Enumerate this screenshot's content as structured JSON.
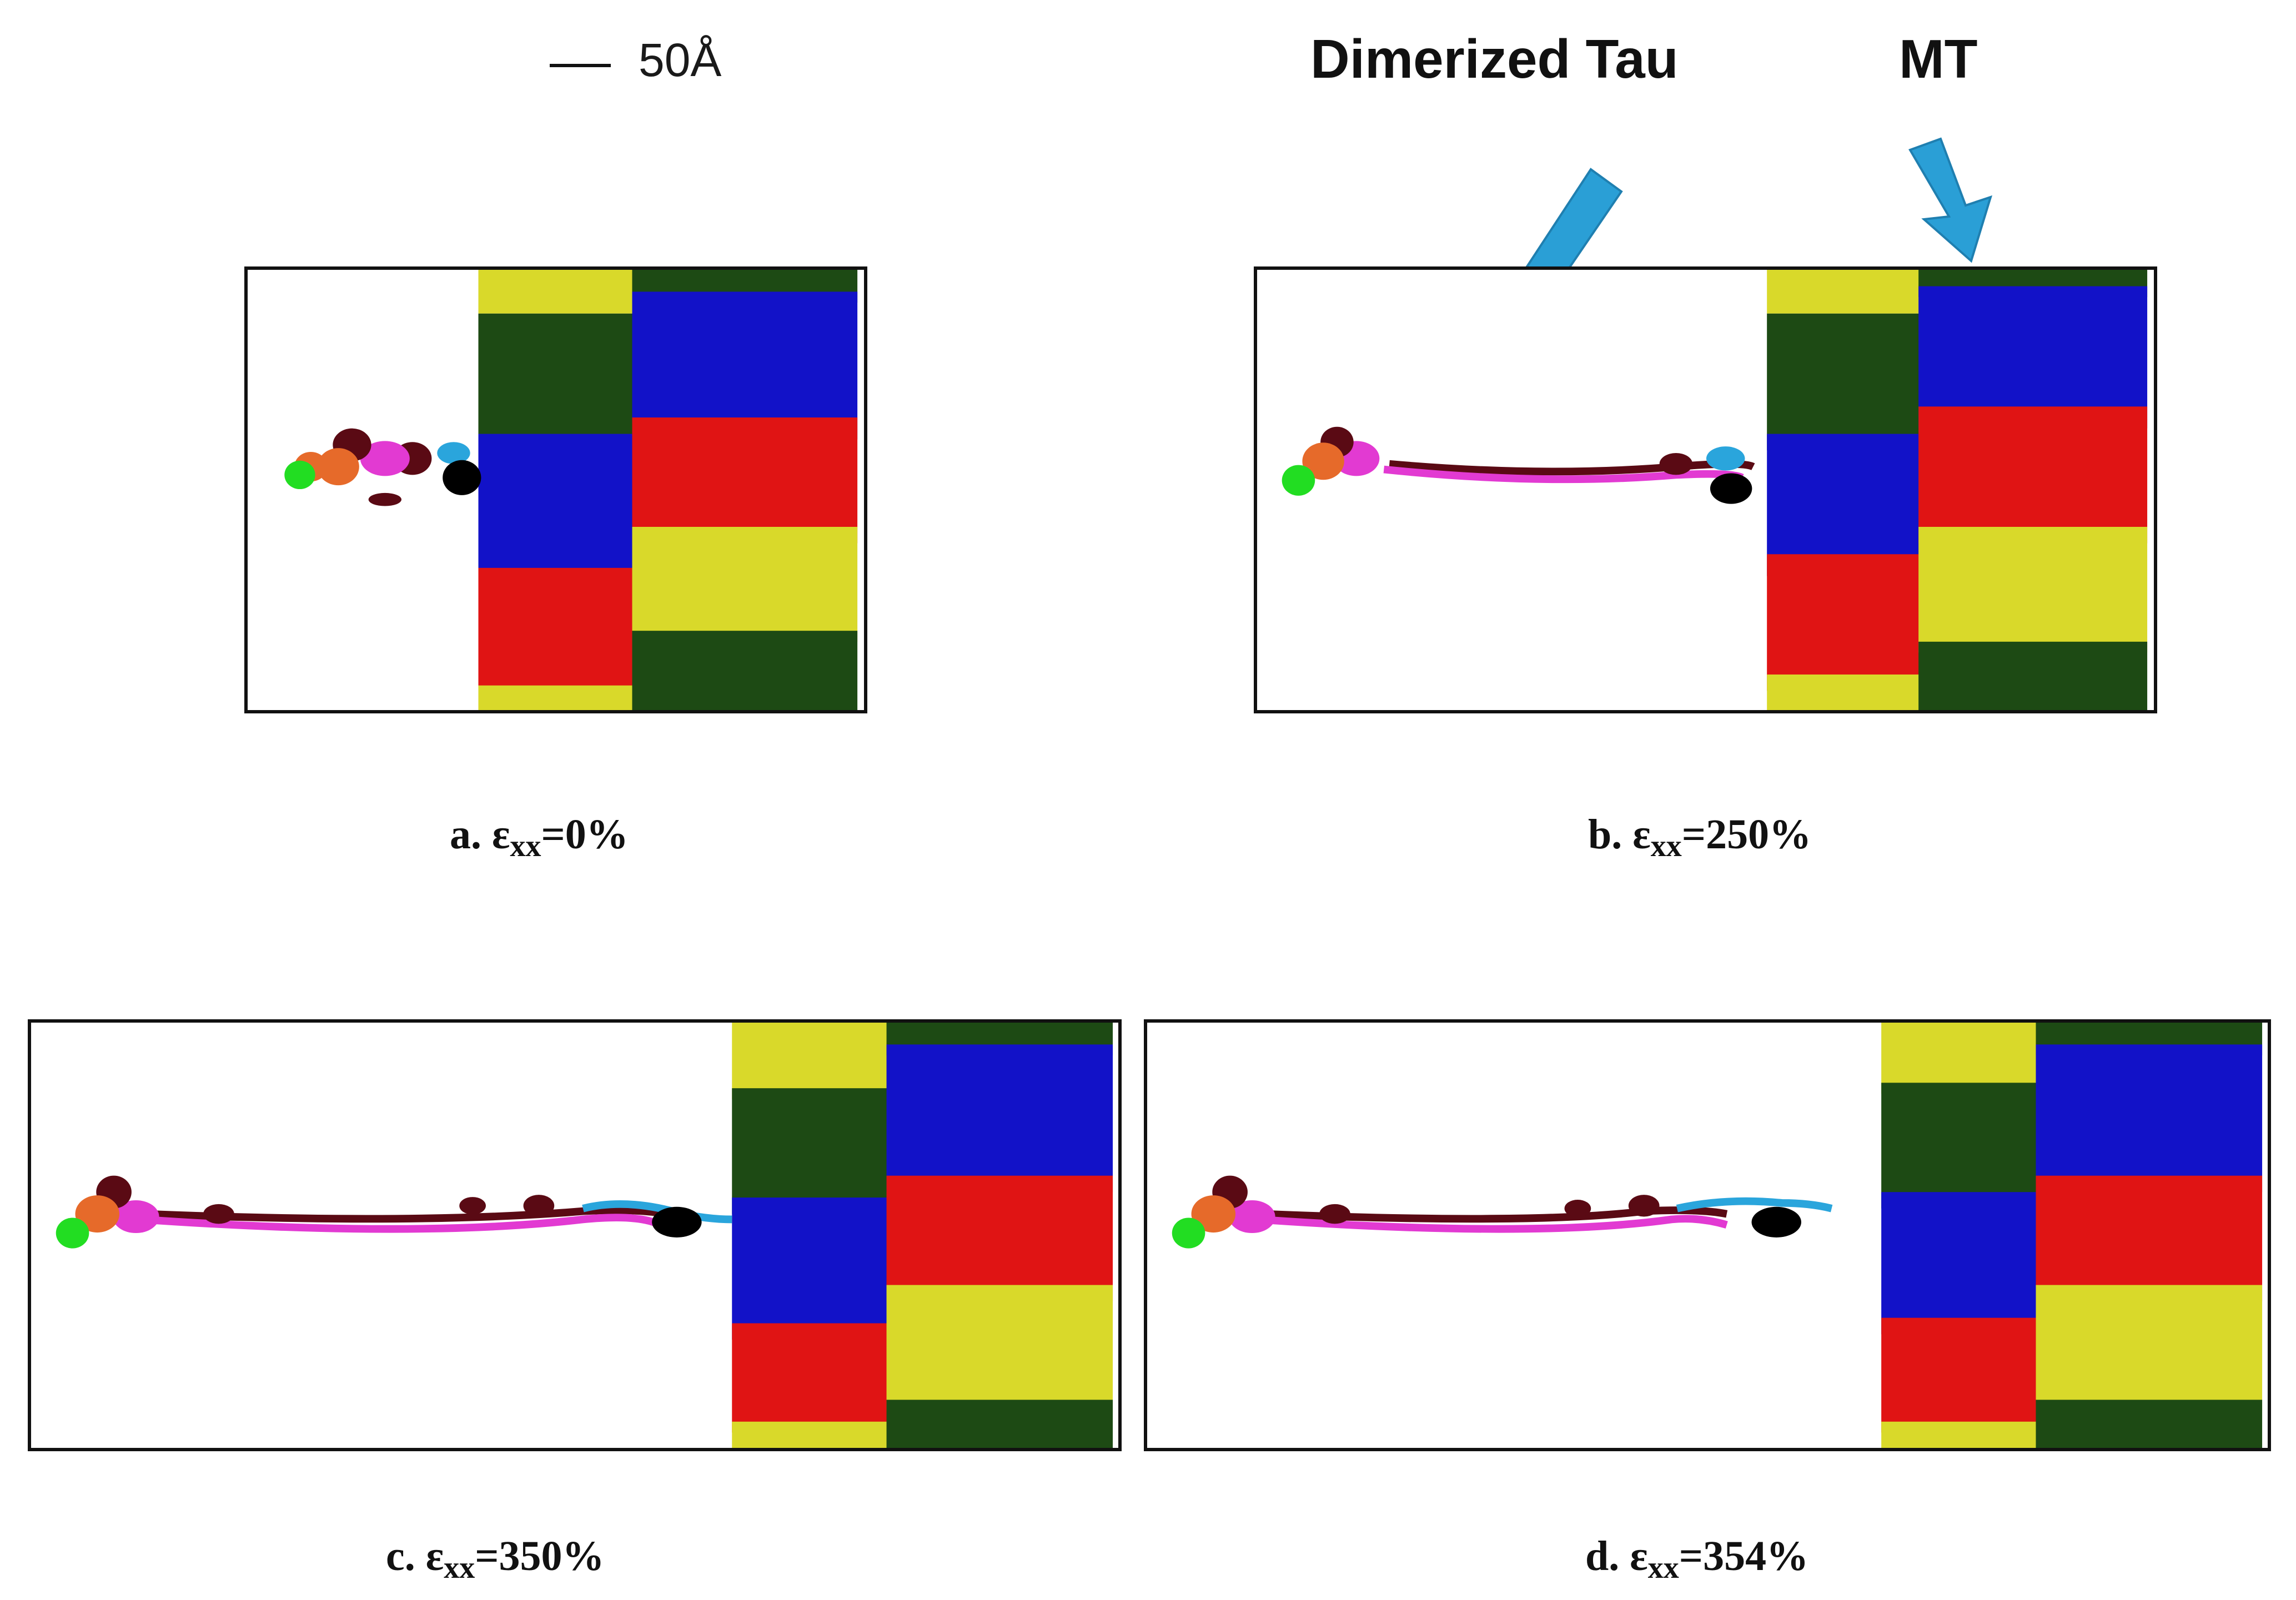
{
  "scale_bar": {
    "label": "50Å"
  },
  "callouts": [
    {
      "label": "Dimerized Tau"
    },
    {
      "label": "MT"
    }
  ],
  "panels": [
    {
      "letter": "a.",
      "symbol": "ε",
      "subscript": "xx",
      "value": "=0%"
    },
    {
      "letter": "b.",
      "symbol": "ε",
      "subscript": "xx",
      "value": "=250%"
    },
    {
      "letter": "c.",
      "symbol": "ε",
      "subscript": "xx",
      "value": "=350%"
    },
    {
      "letter": "d.",
      "symbol": "ε",
      "subscript": "xx",
      "value": "=354%"
    }
  ],
  "colors": {
    "yellow": "#d9d92a",
    "dark_green": "#1d4a14",
    "blue": "#1212c8",
    "red": "#e01414",
    "magenta": "#e23ad2",
    "maroon": "#5a0a14",
    "cyan": "#2aa5dc",
    "black": "#000000",
    "green": "#22dd22",
    "orange": "#e66a2a",
    "arrow": "#2a9fd6"
  }
}
